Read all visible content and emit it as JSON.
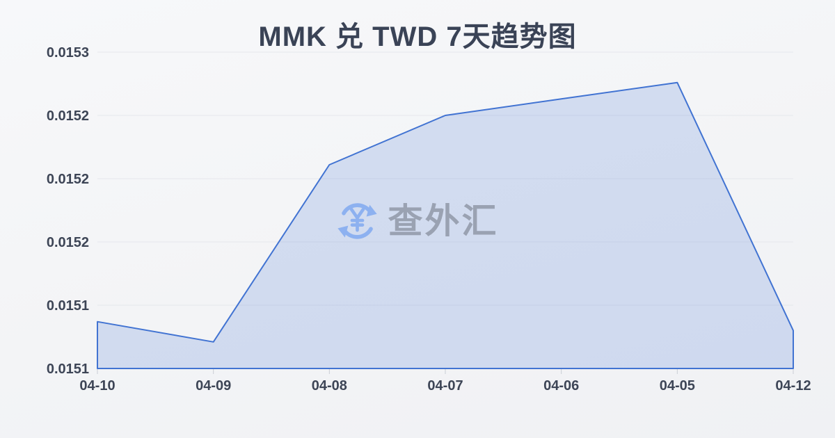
{
  "page": {
    "kind": "currency-trend-chart-card"
  },
  "watermark": {
    "text": "查外汇",
    "icon": "currency-exchange-icon",
    "icon_color": "#8db1f0",
    "text_color": "#9aa2b2"
  },
  "chart_data": {
    "type": "area",
    "title": "MMK 兑 TWD 7天趋势图",
    "categories": [
      "04-10",
      "04-09",
      "04-08",
      "04-07",
      "04-06",
      "04-05",
      "04-12"
    ],
    "values": [
      0.015087,
      0.015071,
      0.015211,
      0.01525,
      0.015263,
      0.015276,
      0.01508
    ],
    "xlabel": "",
    "ylabel": "",
    "ylim": [
      0.01505,
      0.0153
    ],
    "y_ticks": [
      {
        "value": 0.01505,
        "label": "0.0151"
      },
      {
        "value": 0.0151,
        "label": "0.0151"
      },
      {
        "value": 0.01515,
        "label": "0.0152"
      },
      {
        "value": 0.0152,
        "label": "0.0152"
      },
      {
        "value": 0.01525,
        "label": "0.0152"
      },
      {
        "value": 0.0153,
        "label": "0.0153"
      }
    ],
    "grid": true,
    "legend": false,
    "colors": {
      "line": "#4173d2",
      "fill": "rgba(66,114,210,0.19)",
      "gridline": "#e5e7ec",
      "axis_tick": "#c9cdd5",
      "label": "#3d4556",
      "title": "#3a4356",
      "background_top": "#f7f8fa",
      "background_bottom": "#f0f1f4"
    }
  }
}
